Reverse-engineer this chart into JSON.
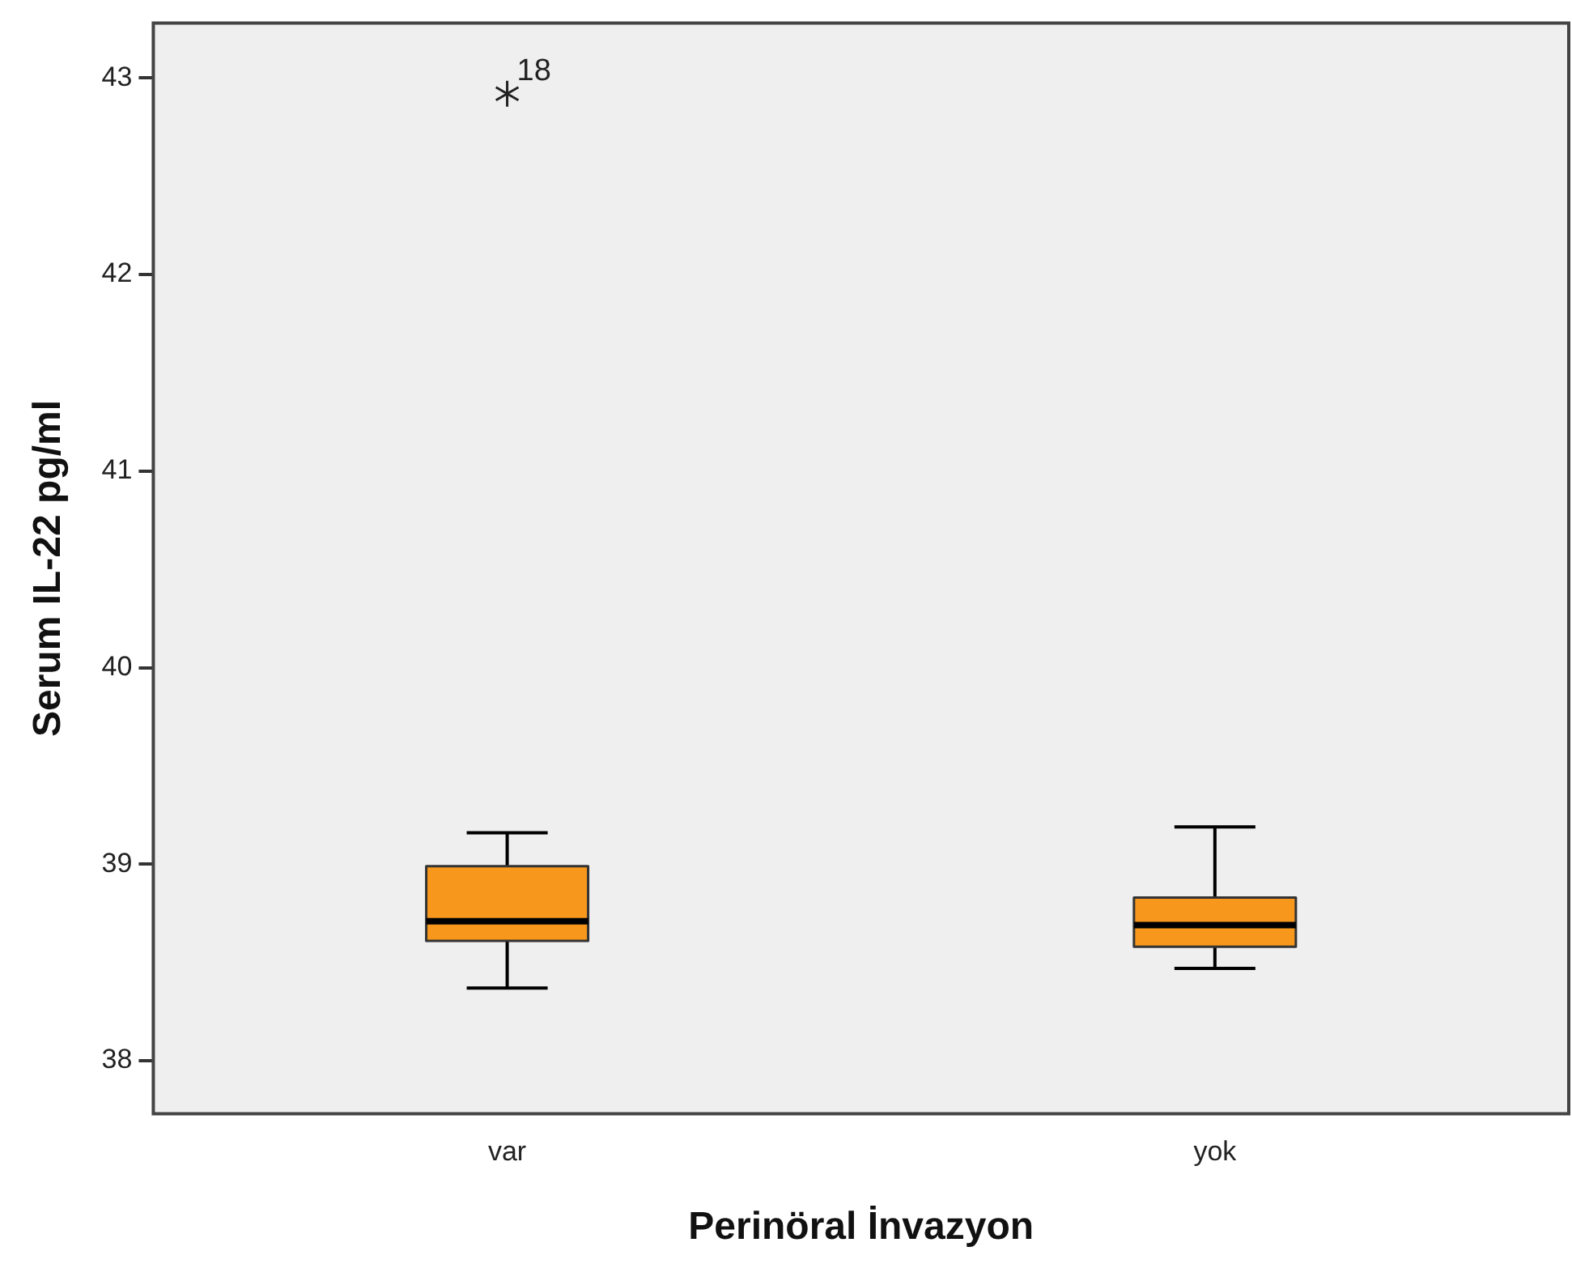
{
  "chart_data": {
    "type": "box",
    "xlabel": "Perinöral İnvazyon",
    "ylabel": "Serum IL-22 pg/ml",
    "categories": [
      "var",
      "yok"
    ],
    "series": [
      {
        "color": "#f7981d",
        "boxes": [
          {
            "low": 38.37,
            "q1": 38.61,
            "median": 38.71,
            "q3": 38.99,
            "high": 39.16,
            "outliers": [
              42.92
            ]
          },
          {
            "low": 38.47,
            "q1": 38.58,
            "median": 38.69,
            "q3": 38.83,
            "high": 39.19
          }
        ]
      }
    ],
    "ylim": [
      37.73,
      43.28
    ],
    "yticks": [
      38,
      39,
      40,
      41,
      42,
      43
    ],
    "grid": false,
    "legend": false,
    "marker": "star",
    "annotations": [
      "18"
    ]
  }
}
